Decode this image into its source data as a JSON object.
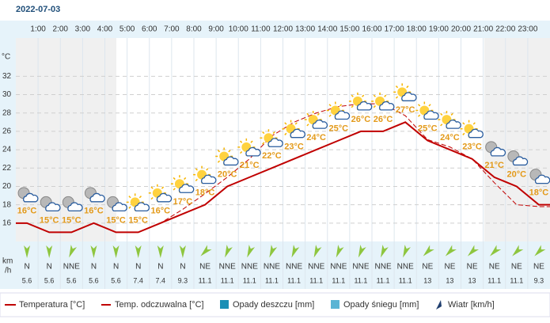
{
  "chart_data": {
    "type": "line",
    "title": "2022-07-03",
    "y_unit": "°C",
    "hour_labels": [
      "1:00",
      "2:00",
      "3:00",
      "4:00",
      "5:00",
      "6:00",
      "7:00",
      "8:00",
      "9:00",
      "10:00",
      "11:00",
      "12:00",
      "13:00",
      "14:00",
      "15:00",
      "16:00",
      "17:00",
      "18:00",
      "19:00",
      "20:00",
      "21:00",
      "22:00",
      "23:00"
    ],
    "ylim": [
      14,
      36
    ],
    "yticks": [
      16,
      18,
      20,
      22,
      24,
      26,
      28,
      30,
      32
    ],
    "grid": true,
    "series": [
      {
        "name": "Temperatura [°C]",
        "color": "#c00000",
        "values": [
          16,
          15,
          15,
          16,
          15,
          15,
          16,
          17,
          18,
          20,
          21,
          22,
          23,
          24,
          25,
          26,
          26,
          27,
          25,
          24,
          23,
          21,
          20,
          18
        ],
        "value_labels": [
          "16°C",
          "15°C",
          "15°C",
          "16°C",
          "15°C",
          "15°C",
          "16°C",
          "17°C",
          "18°C",
          "20°C",
          "21°C",
          "22°C",
          "23°C",
          "24°C",
          "25°C",
          "26°C",
          "26°C",
          "27°C",
          "25°C",
          "24°C",
          "23°C",
          "21°C",
          "20°C",
          "18°C"
        ]
      },
      {
        "name": "Temp. odczuwalna [°C]",
        "color": "#c00000",
        "values": [
          16,
          15,
          15,
          16,
          15,
          15,
          16,
          17.5,
          19.2,
          21,
          23,
          25.5,
          27,
          28,
          28.7,
          29,
          29,
          27.7,
          25.1,
          24.3,
          23,
          20.4,
          18,
          17.8
        ]
      }
    ],
    "legend_extra": [
      {
        "name": "Opady deszczu [mm]",
        "color": "#1a8fb5"
      },
      {
        "name": "Opady śniegu [mm]",
        "color": "#5ab4d4"
      }
    ],
    "wind": {
      "name": "Wiatr [km/h]",
      "unit": [
        "km",
        "/h"
      ],
      "directions": [
        "N",
        "N",
        "NNE",
        "N",
        "N",
        "N",
        "N",
        "N",
        "NE",
        "NNE",
        "NNE",
        "NNE",
        "NNE",
        "NNE",
        "NNE",
        "NNE",
        "NNE",
        "NNE",
        "NE",
        "NE",
        "NE",
        "NE",
        "NE",
        "NE"
      ],
      "speeds": [
        5.6,
        5.6,
        5.6,
        5.6,
        5.6,
        7.4,
        7.4,
        9.3,
        11.1,
        11.1,
        11.1,
        11.1,
        11.1,
        11.1,
        11.1,
        11.1,
        11.1,
        11.1,
        13,
        13,
        13,
        11.1,
        11.1,
        9.3
      ]
    }
  }
}
